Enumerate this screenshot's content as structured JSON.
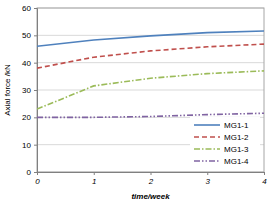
{
  "chart_data": {
    "type": "line",
    "x_label": "time/week",
    "y_label": "Axial force /kN",
    "x": [
      0,
      1,
      2,
      3,
      4
    ],
    "xlim": [
      0,
      4
    ],
    "xticks": [
      0,
      1,
      2,
      3,
      4
    ],
    "ylim": [
      0,
      60
    ],
    "yticks": [
      0,
      10,
      20,
      30,
      40,
      50,
      60
    ],
    "grid": true,
    "legend": "lower right",
    "series": [
      {
        "name": "MG1-1",
        "color": "#4f81bd",
        "line_style": "solid",
        "values": [
          46,
          48.3,
          49.8,
          51,
          51.6
        ]
      },
      {
        "name": "MG1-2",
        "color": "#c0504d",
        "line_style": "dashed",
        "values": [
          38,
          42,
          44.3,
          45.8,
          46.8
        ]
      },
      {
        "name": "MG1-3",
        "color": "#9bbb59",
        "line_style": "dashdot",
        "values": [
          23,
          31.5,
          34.3,
          36,
          37
        ]
      },
      {
        "name": "MG1-4",
        "color": "#8064a2",
        "line_style": "dashdotdot",
        "values": [
          20,
          20,
          20.3,
          21,
          21.5
        ]
      }
    ]
  }
}
